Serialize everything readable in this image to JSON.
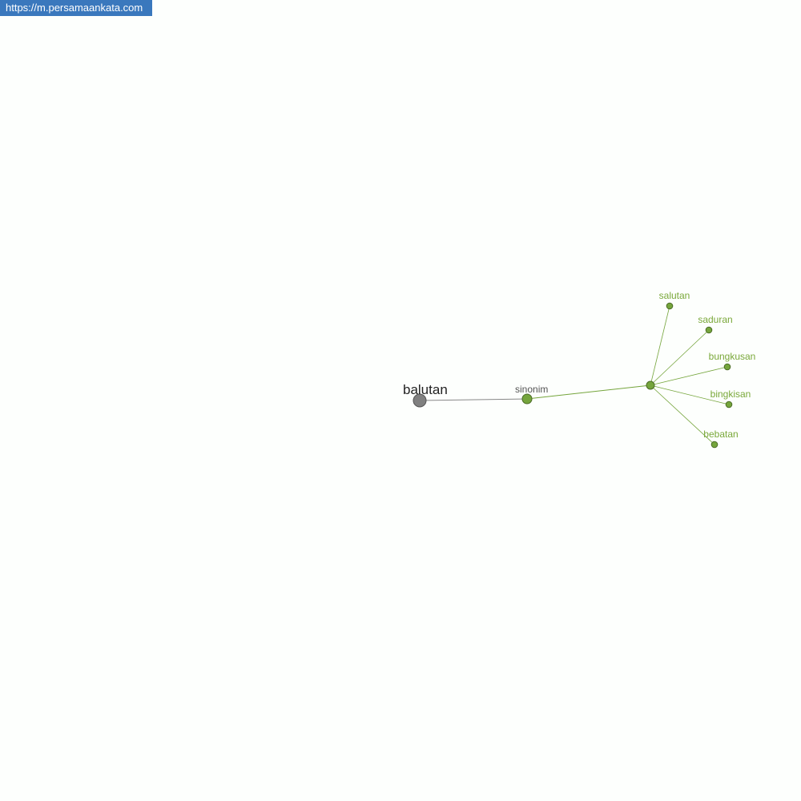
{
  "banner": {
    "url": "https://m.persamaankata.com"
  },
  "graph": {
    "root": "balutan",
    "relation": "sinonim",
    "synonyms": [
      "salutan",
      "saduran",
      "bungkusan",
      "bingkisan",
      "bebatan"
    ],
    "colors": {
      "root": "#808080",
      "node": "#75a53c",
      "label": "#7aa83a"
    }
  }
}
